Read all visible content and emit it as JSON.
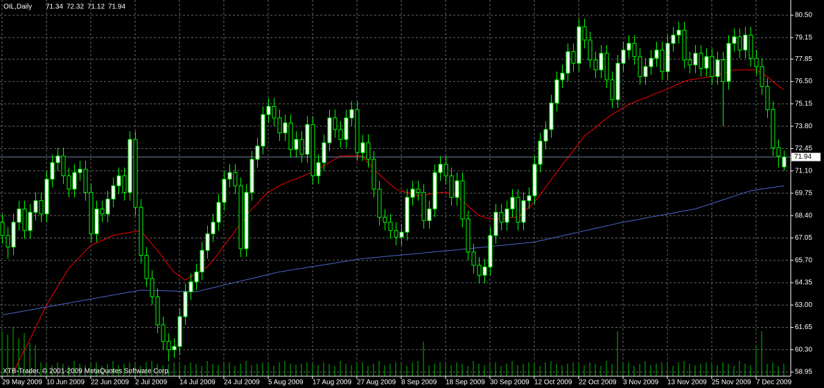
{
  "chart_data": {
    "type": "candlestick",
    "title": "OIL,Daily",
    "watermark": "XTB-Trader, © 2001-2009 MetaQuotes Software Corp.",
    "background": "#000000",
    "up_color": "#ffffff",
    "down_color": "#000000",
    "wick_color": "#00ff00",
    "grid": true,
    "grid_color": "#6a6a6a",
    "ylim": [
      58.7,
      81.42
    ],
    "yticks": [
      {
        "value": 80.5,
        "label": "80.50"
      },
      79.15,
      77.85,
      {
        "value": 76.5,
        "label": "76.50"
      },
      75.15,
      {
        "value": 73.8,
        "label": "73.80"
      },
      72.45,
      {
        "value": 71.1,
        "label": "71.10"
      },
      69.75,
      {
        "value": 68.4,
        "label": "68.40"
      },
      67.05,
      {
        "value": 65.7,
        "label": "65.70"
      },
      64.35,
      {
        "value": 63.0,
        "label": "63.00"
      },
      61.65,
      {
        "value": 60.3,
        "label": "60.30"
      },
      58.95
    ],
    "categories": [
      "29 May 2009",
      null,
      null,
      null,
      null,
      null,
      null,
      null,
      "10 Jun 2009",
      null,
      null,
      null,
      null,
      null,
      null,
      null,
      "22 Jun 2009",
      null,
      null,
      null,
      null,
      null,
      null,
      null,
      "2 Jul 2009",
      null,
      null,
      null,
      null,
      null,
      null,
      null,
      "14 Jul 2009",
      null,
      null,
      null,
      null,
      null,
      null,
      null,
      "24 Jul 2009",
      null,
      null,
      null,
      null,
      null,
      null,
      null,
      "5 Aug 2009",
      null,
      null,
      null,
      null,
      null,
      null,
      null,
      "17 Aug 2009",
      null,
      null,
      null,
      null,
      null,
      null,
      null,
      "27 Aug 2009",
      null,
      null,
      null,
      null,
      null,
      null,
      null,
      "8 Sep 2009",
      null,
      null,
      null,
      null,
      null,
      null,
      null,
      "18 Sep 2009",
      null,
      null,
      null,
      null,
      null,
      null,
      null,
      "30 Sep 2009",
      null,
      null,
      null,
      null,
      null,
      null,
      null,
      "12 Oct 2009",
      null,
      null,
      null,
      null,
      null,
      null,
      null,
      "22 Oct 2009",
      null,
      null,
      null,
      null,
      null,
      null,
      null,
      "3 Nov 2009",
      null,
      null,
      null,
      null,
      null,
      null,
      null,
      "13 Nov 2009",
      null,
      null,
      null,
      null,
      null,
      null,
      null,
      "25 Nov 2009",
      null,
      null,
      null,
      null,
      null,
      null,
      null,
      "7 Dec 2009",
      null,
      null,
      null,
      null,
      null
    ],
    "open": [
      68.0,
      67.2,
      66.5,
      68.0,
      68.8,
      67.5,
      68.6,
      69.3,
      68.5,
      70.6,
      71.6,
      72.0,
      70.8,
      70.0,
      71.0,
      71.2,
      69.8,
      67.3,
      68.8,
      68.5,
      69.4,
      70.2,
      70.8,
      69.8,
      73.0,
      68.9,
      66.0,
      64.6,
      63.5,
      61.8,
      60.8,
      60.3,
      60.5,
      62.3,
      63.8,
      64.4,
      65.0,
      66.3,
      67.3,
      68.0,
      69.2,
      70.6,
      71.0,
      70.2,
      66.4,
      69.8,
      71.8,
      72.6,
      74.5,
      75.0,
      74.3,
      73.4,
      74.0,
      72.4,
      73.0,
      72.1,
      73.9,
      70.8,
      71.6,
      72.8,
      74.3,
      73.6,
      73.0,
      74.3,
      74.8,
      72.2,
      72.8,
      71.8,
      70.0,
      68.3,
      68.0,
      67.5,
      67.1,
      67.4,
      69.5,
      70.0,
      69.8,
      68.1,
      68.8,
      71.0,
      71.5,
      70.8,
      69.5,
      70.5,
      68.2,
      66.2,
      65.4,
      64.8,
      65.3,
      67.2,
      68.6,
      68.0,
      68.8,
      69.5,
      68.0,
      69.3,
      69.6,
      71.5,
      72.9,
      73.6,
      75.2,
      76.6,
      77.0,
      78.3,
      77.6,
      79.8,
      79.0,
      77.8,
      77.2,
      78.2,
      76.6,
      75.4,
      77.6,
      78.4,
      78.8,
      78.0,
      76.8,
      77.4,
      77.9,
      78.4,
      77.1,
      78.8,
      79.3,
      79.6,
      77.8,
      77.5,
      78.2,
      77.3,
      78.0,
      76.8,
      77.8,
      76.5,
      78.8,
      79.2,
      78.4,
      79.3,
      77.9,
      77.4,
      76.2,
      74.8,
      72.5,
      71.34
    ],
    "high": [
      68.5,
      67.7,
      68.5,
      69.3,
      69.3,
      69.1,
      69.8,
      69.8,
      71.1,
      72.1,
      72.5,
      72.5,
      71.3,
      71.5,
      71.7,
      71.7,
      70.3,
      69.3,
      69.3,
      69.9,
      70.7,
      71.3,
      71.3,
      73.5,
      73.5,
      69.4,
      66.5,
      65.1,
      64.0,
      62.3,
      61.3,
      61.0,
      62.8,
      64.3,
      64.9,
      65.5,
      66.8,
      67.8,
      68.5,
      69.7,
      71.1,
      71.5,
      71.5,
      70.7,
      70.3,
      72.3,
      73.1,
      75.0,
      75.5,
      75.5,
      74.8,
      74.5,
      74.5,
      73.5,
      73.5,
      74.4,
      74.4,
      72.1,
      73.3,
      74.8,
      74.8,
      74.1,
      74.8,
      75.3,
      75.3,
      73.3,
      73.3,
      72.3,
      70.5,
      68.8,
      68.5,
      68.0,
      67.9,
      70.0,
      70.5,
      70.5,
      70.3,
      69.3,
      71.5,
      72.0,
      72.0,
      71.3,
      71.0,
      71.0,
      68.7,
      66.7,
      65.9,
      65.8,
      67.7,
      69.1,
      69.1,
      69.3,
      70.0,
      70.0,
      69.8,
      70.1,
      72.0,
      73.4,
      74.1,
      75.7,
      77.1,
      77.5,
      78.8,
      78.8,
      80.3,
      80.3,
      79.5,
      78.3,
      78.7,
      78.7,
      77.1,
      78.1,
      78.9,
      79.3,
      79.3,
      78.5,
      77.9,
      78.4,
      78.9,
      78.9,
      79.3,
      79.8,
      80.1,
      80.1,
      78.3,
      78.7,
      78.7,
      78.5,
      78.5,
      78.3,
      78.3,
      79.3,
      79.7,
      79.7,
      79.8,
      79.8,
      78.4,
      77.9,
      76.7,
      75.3,
      73.0,
      72.32
    ],
    "low": [
      66.7,
      65.8,
      66.0,
      67.5,
      67.0,
      67.0,
      68.1,
      68.0,
      68.0,
      70.1,
      71.1,
      70.3,
      69.5,
      69.5,
      70.5,
      69.3,
      66.8,
      66.8,
      68.0,
      68.0,
      68.9,
      69.7,
      69.3,
      69.3,
      68.4,
      65.5,
      64.1,
      63.0,
      61.3,
      60.3,
      59.6,
      59.8,
      60.0,
      61.8,
      63.3,
      63.9,
      64.5,
      65.8,
      66.8,
      67.5,
      68.7,
      70.1,
      69.7,
      65.9,
      65.9,
      69.3,
      71.3,
      72.1,
      74.0,
      73.8,
      72.9,
      72.9,
      71.9,
      71.9,
      71.6,
      71.6,
      70.3,
      70.3,
      71.1,
      72.3,
      73.1,
      72.5,
      72.5,
      73.8,
      71.7,
      71.7,
      71.3,
      69.5,
      67.8,
      67.5,
      67.0,
      66.6,
      66.6,
      66.9,
      69.0,
      69.3,
      67.6,
      67.6,
      68.3,
      70.5,
      70.3,
      69.0,
      69.0,
      67.7,
      65.7,
      64.9,
      64.3,
      64.3,
      64.8,
      66.7,
      67.5,
      67.5,
      68.3,
      67.5,
      67.5,
      68.8,
      69.1,
      71.0,
      72.4,
      73.1,
      74.7,
      76.1,
      76.5,
      77.1,
      77.1,
      78.5,
      77.3,
      76.7,
      76.7,
      76.1,
      74.9,
      74.9,
      77.1,
      77.9,
      77.5,
      76.3,
      76.3,
      76.9,
      77.4,
      76.6,
      76.6,
      78.3,
      78.8,
      77.3,
      77.0,
      77.0,
      76.8,
      76.8,
      76.3,
      76.3,
      73.8,
      76.0,
      78.3,
      77.9,
      77.9,
      77.4,
      76.9,
      75.7,
      74.3,
      72.0,
      71.3,
      71.12
    ],
    "close": [
      67.2,
      66.5,
      68.0,
      68.8,
      67.5,
      68.6,
      69.3,
      68.5,
      70.6,
      71.6,
      72.0,
      70.8,
      70.0,
      71.0,
      71.2,
      69.8,
      67.3,
      68.8,
      68.5,
      69.4,
      70.2,
      70.8,
      69.8,
      73.0,
      68.9,
      66.0,
      64.6,
      63.5,
      61.8,
      60.8,
      60.3,
      60.5,
      62.3,
      63.8,
      64.4,
      65.0,
      66.3,
      67.3,
      68.0,
      69.2,
      70.6,
      71.0,
      70.2,
      66.4,
      69.8,
      71.8,
      72.6,
      74.5,
      75.0,
      74.3,
      73.4,
      74.0,
      72.4,
      73.0,
      72.1,
      73.9,
      70.8,
      71.6,
      72.8,
      74.3,
      73.6,
      73.0,
      74.3,
      74.8,
      72.2,
      72.8,
      71.8,
      70.0,
      68.3,
      68.0,
      67.5,
      67.1,
      67.4,
      69.5,
      70.0,
      69.8,
      68.1,
      68.8,
      71.0,
      71.5,
      70.8,
      69.5,
      70.5,
      68.2,
      66.2,
      65.4,
      64.8,
      65.3,
      67.2,
      68.6,
      68.0,
      68.8,
      69.5,
      68.0,
      69.3,
      69.6,
      71.5,
      72.9,
      73.6,
      75.2,
      76.6,
      77.0,
      78.3,
      77.6,
      79.8,
      79.0,
      77.8,
      77.2,
      78.2,
      76.6,
      75.4,
      77.6,
      78.4,
      78.8,
      78.0,
      76.8,
      77.4,
      77.9,
      78.4,
      77.1,
      78.8,
      79.3,
      79.6,
      77.8,
      77.5,
      78.2,
      77.3,
      78.0,
      76.8,
      77.8,
      76.5,
      78.8,
      79.2,
      78.4,
      79.3,
      77.9,
      77.4,
      76.2,
      74.8,
      72.5,
      72.0,
      71.94
    ],
    "overlays": [
      {
        "color": "#ff0000",
        "values": [
          null,
          null,
          58.9,
          59.6,
          60.3,
          60.9,
          61.6,
          62.3,
          63.0,
          63.55,
          64.1,
          64.65,
          65.2,
          65.55,
          65.9,
          66.25,
          66.6,
          66.75,
          66.9,
          67.05,
          67.2,
          67.26,
          67.32,
          67.38,
          67.44,
          67.5,
          67.1,
          66.7,
          66.3,
          65.9,
          65.4,
          65.0,
          64.75,
          64.5,
          64.7,
          64.9,
          65.1,
          65.3,
          65.7,
          66.1,
          66.6,
          67.0,
          67.45,
          67.9,
          68.35,
          68.8,
          69.1,
          69.5,
          69.8,
          70.0,
          70.2,
          70.35,
          70.5,
          70.6,
          70.75,
          70.9,
          71.0,
          71.2,
          71.4,
          71.6,
          71.8,
          72.0,
          72.0,
          72.0,
          72.0,
          72.0,
          71.6,
          71.2,
          70.9,
          70.6,
          70.3,
          70.0,
          69.9,
          69.8,
          69.7,
          69.6,
          69.65,
          69.7,
          69.75,
          69.8,
          69.8,
          69.7,
          69.6,
          69.3,
          69.0,
          68.7,
          68.4,
          68.3,
          68.2,
          68.2,
          68.2,
          68.25,
          68.3,
          68.3,
          68.6,
          68.9,
          69.2,
          69.65,
          70.1,
          70.55,
          71.0,
          71.45,
          71.9,
          72.3,
          72.75,
          73.2,
          73.45,
          73.7,
          74.0,
          74.25,
          74.5,
          74.7,
          74.9,
          75.1,
          75.25,
          75.4,
          75.5,
          75.65,
          75.8,
          75.9,
          76.05,
          76.2,
          76.35,
          76.5,
          76.6,
          76.65,
          76.7,
          76.75,
          76.8,
          76.9,
          77.0,
          77.1,
          77.2,
          77.2,
          77.2,
          77.2,
          77.2,
          77.0,
          76.8,
          76.5,
          76.25,
          76.0
        ]
      },
      {
        "color": "#4a68c8",
        "values": [
          62.4,
          62.46,
          62.52,
          62.58,
          62.64,
          62.7,
          62.76,
          62.82,
          62.88,
          62.94,
          63.0,
          63.06,
          63.12,
          63.18,
          63.24,
          63.3,
          63.36,
          63.42,
          63.48,
          63.54,
          63.6,
          63.66,
          63.72,
          63.78,
          63.84,
          63.9,
          63.89,
          63.88,
          63.87,
          63.86,
          63.85,
          63.84,
          63.83,
          63.82,
          63.81,
          63.8,
          63.88,
          63.96,
          64.04,
          64.12,
          64.2,
          64.28,
          64.36,
          64.44,
          64.52,
          64.6,
          64.68,
          64.76,
          64.84,
          64.92,
          65.0,
          65.05,
          65.11,
          65.16,
          65.21,
          65.27,
          65.32,
          65.37,
          65.43,
          65.48,
          65.53,
          65.59,
          65.64,
          65.69,
          65.75,
          65.8,
          65.83,
          65.86,
          65.89,
          65.93,
          65.96,
          65.99,
          66.02,
          66.05,
          66.08,
          66.11,
          66.14,
          66.18,
          66.21,
          66.24,
          66.27,
          66.3,
          66.33,
          66.37,
          66.4,
          66.43,
          66.47,
          66.5,
          66.53,
          66.57,
          66.6,
          66.63,
          66.67,
          66.7,
          66.73,
          66.77,
          66.8,
          66.88,
          66.95,
          67.03,
          67.1,
          67.18,
          67.25,
          67.33,
          67.4,
          67.48,
          67.55,
          67.63,
          67.7,
          67.78,
          67.85,
          67.93,
          68.0,
          68.06,
          68.12,
          68.18,
          68.25,
          68.31,
          68.37,
          68.43,
          68.49,
          68.55,
          68.62,
          68.68,
          68.74,
          68.8,
          68.91,
          69.02,
          69.13,
          69.24,
          69.35,
          69.46,
          69.57,
          69.68,
          69.79,
          69.9,
          69.95,
          70.0,
          70.05,
          70.1,
          70.15,
          70.2
        ]
      }
    ],
    "volume": {
      "color": "#00c000",
      "values": [
        65,
        60,
        70,
        55,
        62,
        48,
        45,
        20,
        18,
        16,
        20,
        18,
        15,
        22,
        18,
        16,
        18,
        20,
        15,
        18,
        22,
        16,
        18,
        20,
        18,
        15,
        20,
        22,
        18,
        16,
        18,
        20,
        18,
        16,
        20,
        18,
        15,
        22,
        18,
        16,
        18,
        20,
        15,
        18,
        22,
        16,
        18,
        20,
        18,
        15,
        20,
        22,
        18,
        16,
        18,
        20,
        18,
        16,
        20,
        18,
        15,
        22,
        18,
        16,
        18,
        20,
        15,
        18,
        22,
        16,
        18,
        20,
        18,
        15,
        20,
        22,
        50,
        16,
        18,
        20,
        18,
        16,
        20,
        18,
        15,
        22,
        18,
        16,
        18,
        20,
        15,
        18,
        22,
        16,
        18,
        20,
        18,
        15,
        20,
        22,
        18,
        16,
        18,
        20,
        18,
        16,
        20,
        18,
        15,
        22,
        18,
        65,
        18,
        20,
        15,
        18,
        22,
        16,
        18,
        20,
        18,
        15,
        20,
        22,
        18,
        16,
        18,
        20,
        18,
        16,
        20,
        18,
        15,
        22,
        18,
        16,
        45,
        65,
        18,
        20,
        15,
        18
      ]
    }
  }
}
